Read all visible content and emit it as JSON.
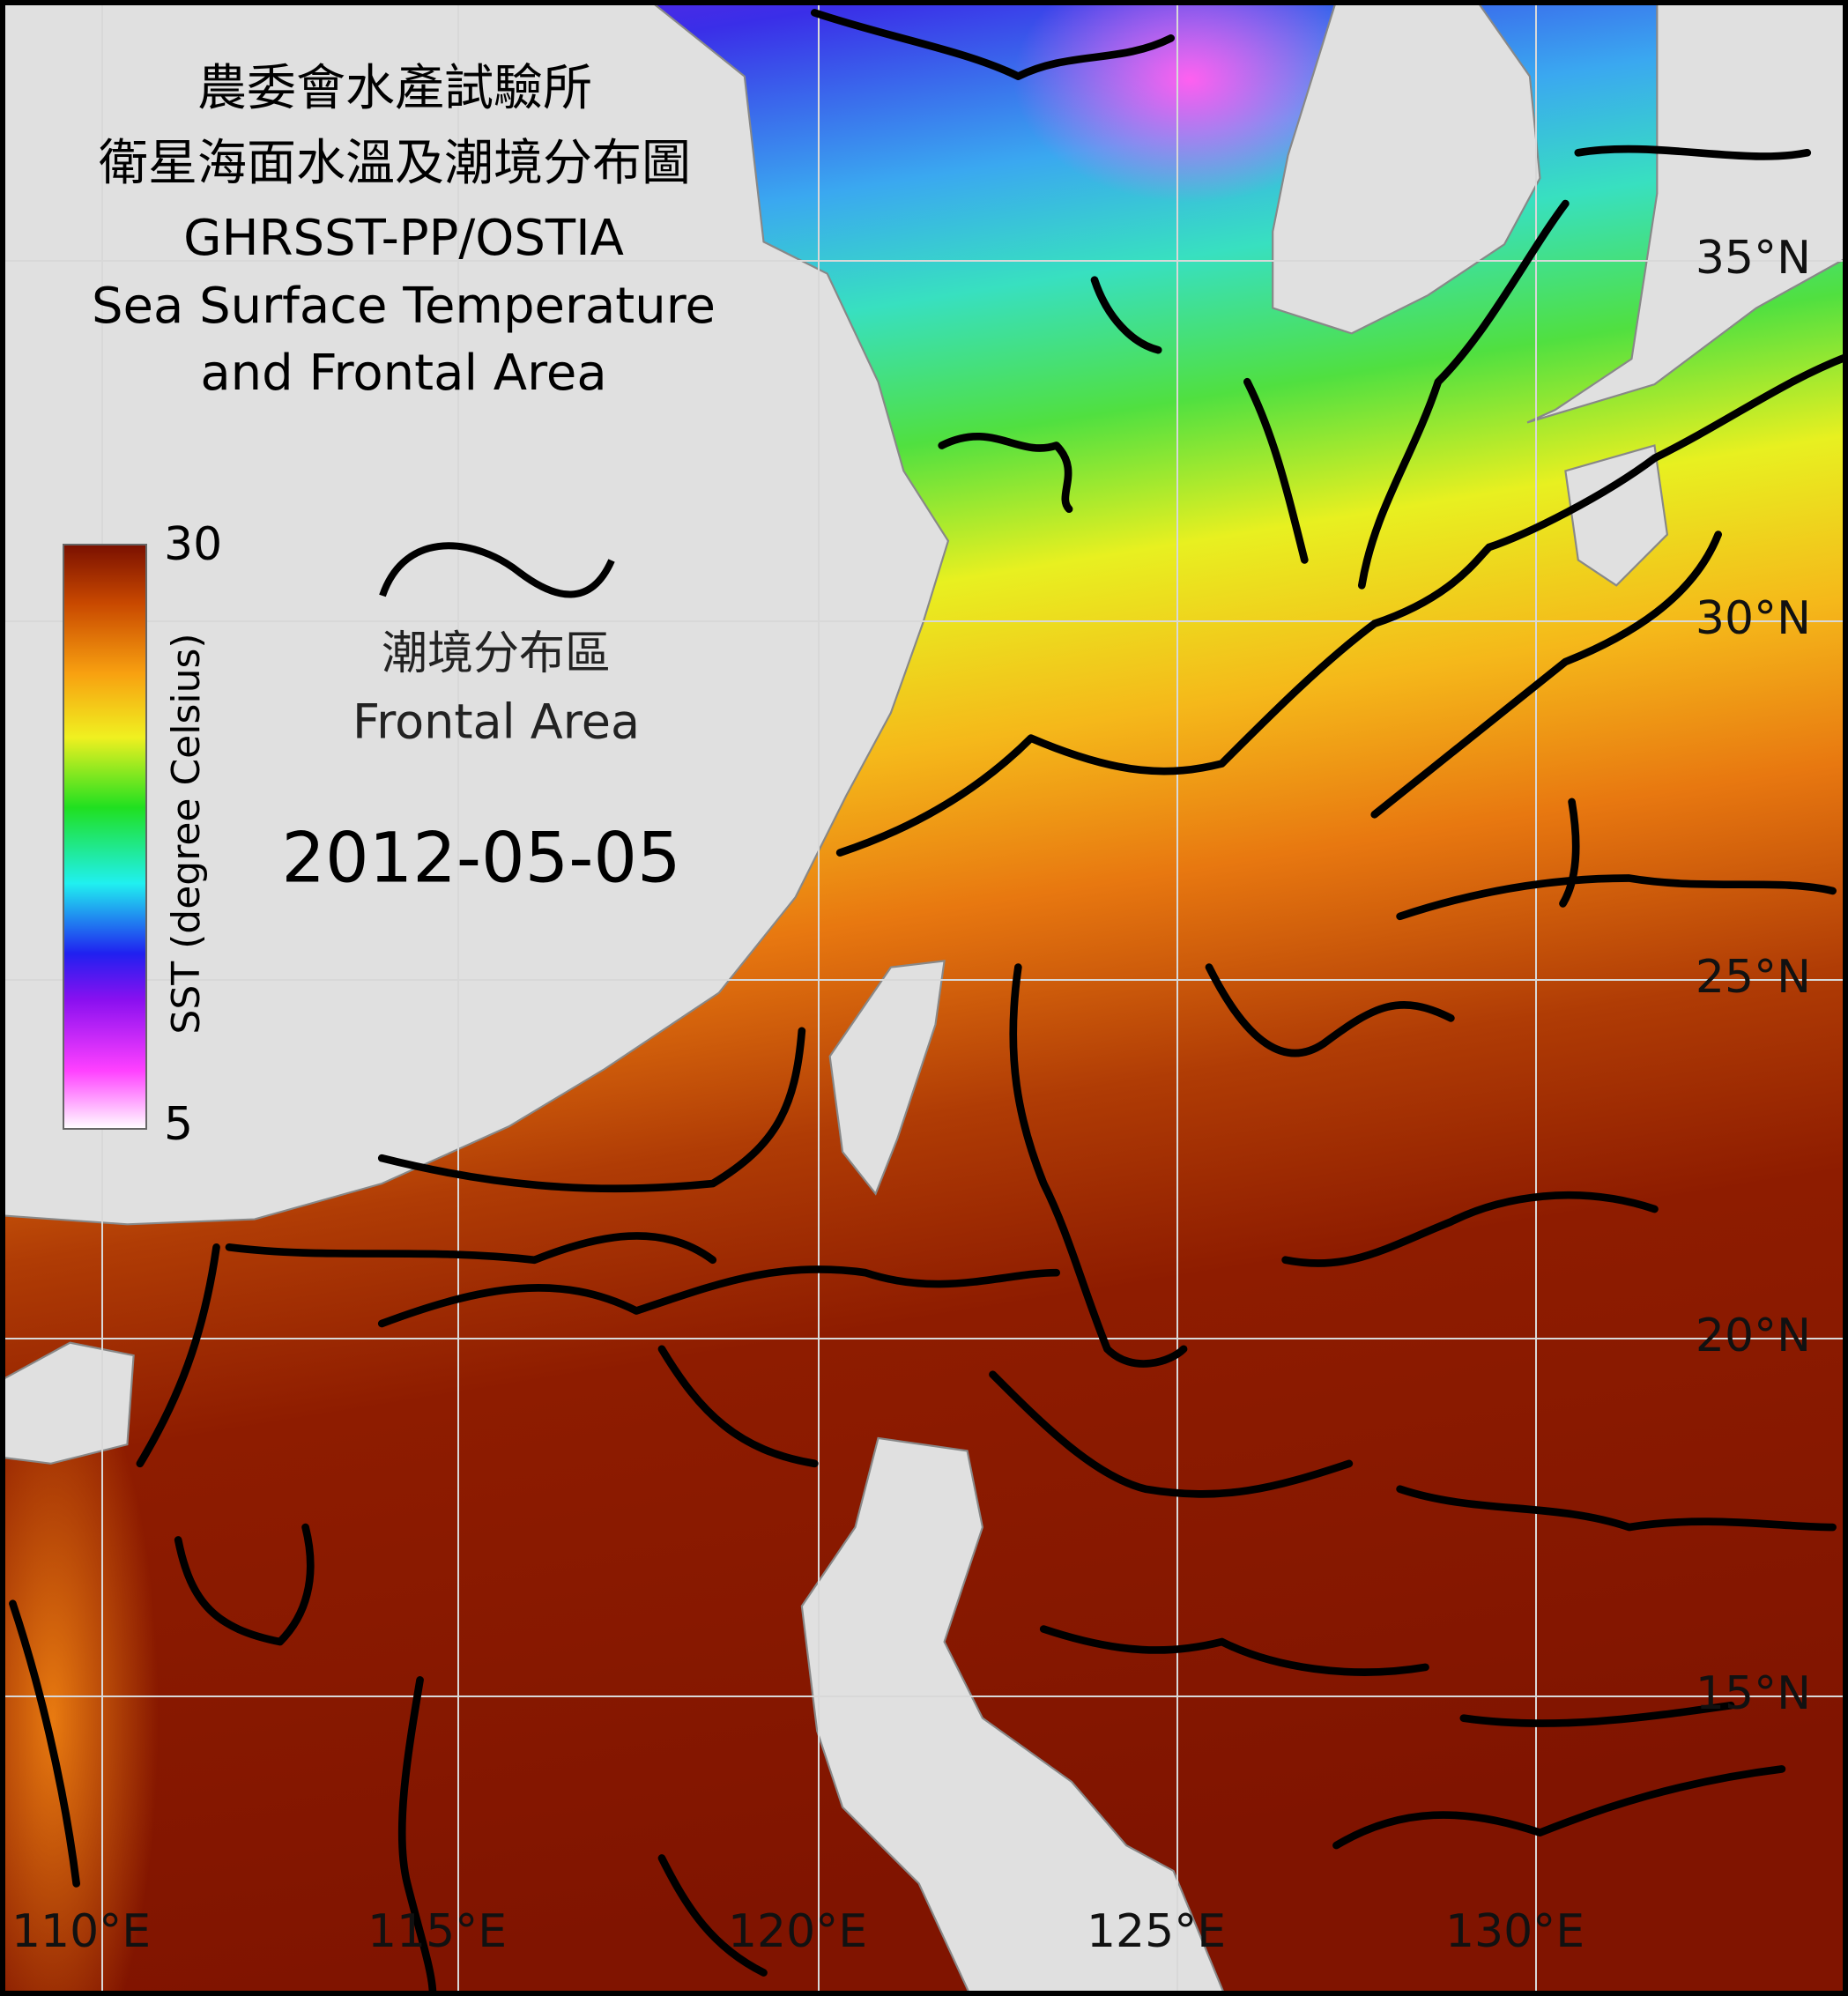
{
  "title": {
    "line1": "農委會水產試驗所",
    "line2": "衛星海面水溫及潮境分布圖",
    "line3": "GHRSST-PP/OSTIA",
    "line4": "Sea Surface Temperature",
    "line5": "and Frontal Area"
  },
  "colorbar": {
    "label": "SST (degree Celsius)",
    "max": 30,
    "min": 5
  },
  "legend": {
    "label_zh": "潮境分布區",
    "label_en": "Frontal Area"
  },
  "date": "2012-05-05",
  "lon_labels": [
    "110°E",
    "115°E",
    "120°E",
    "125°E",
    "130°E"
  ],
  "lat_labels": [
    "35°N",
    "30°N",
    "25°N",
    "20°N",
    "15°N"
  ]
}
